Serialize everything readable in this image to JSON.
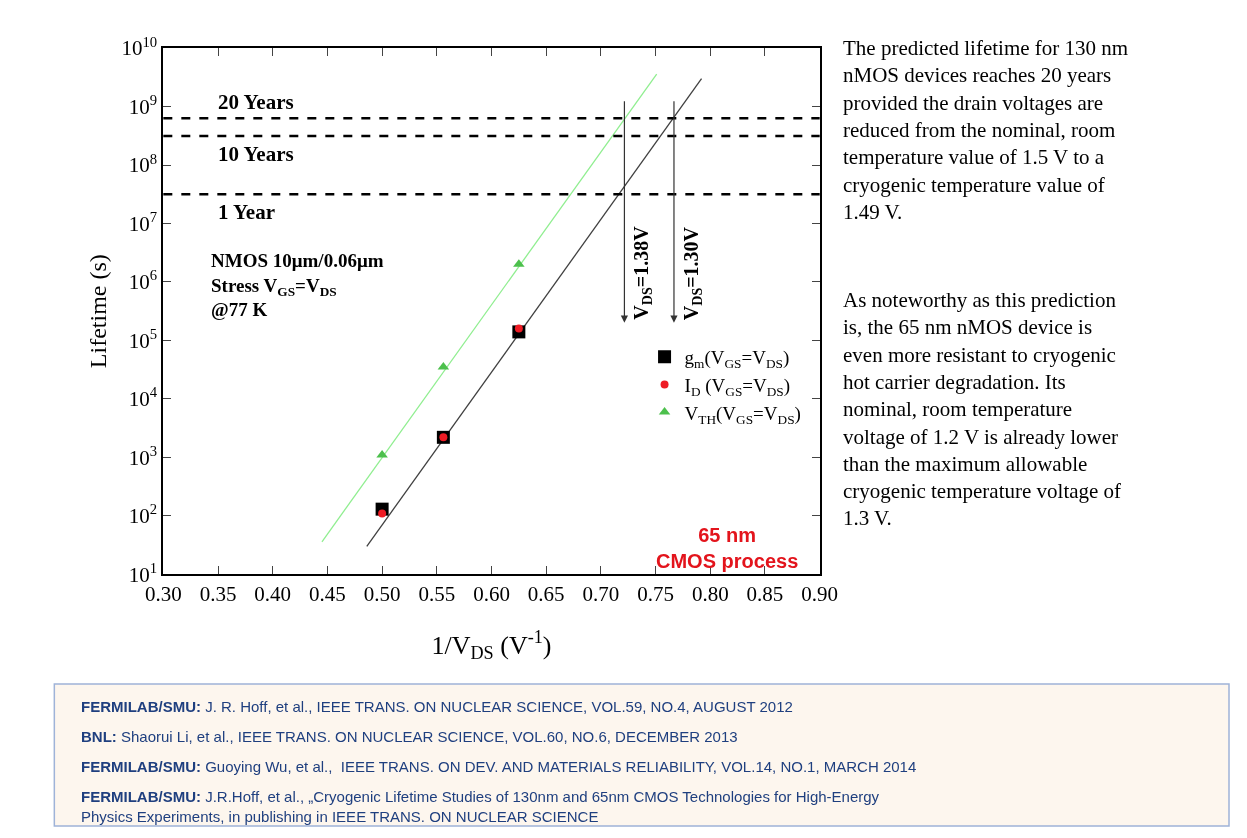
{
  "chart_data": {
    "type": "scatter",
    "xlabel": "1/V$_{DS}$ (V$^{-1}$)",
    "ylabel": "Lifetime (s)",
    "log": "y",
    "xlim": [
      0.3,
      0.9
    ],
    "xticks": [
      {
        "value": 0.3,
        "label": "0.30"
      },
      0.35,
      {
        "value": 0.4,
        "label": "0.40"
      },
      0.45,
      {
        "value": 0.5,
        "label": "0.50"
      },
      0.55,
      {
        "value": 0.6,
        "label": "0.60"
      },
      0.65,
      {
        "value": 0.7,
        "label": "0.70"
      },
      0.75,
      {
        "value": 0.8,
        "label": "0.80"
      },
      0.85,
      {
        "value": 0.9,
        "label": "0.90"
      }
    ],
    "ylim": [
      10,
      10000000000
    ],
    "yticks": [
      {
        "value": 10,
        "label": "10$^{1}$"
      },
      {
        "value": 100,
        "label": "10$^{2}$"
      },
      {
        "value": 1000,
        "label": "10$^{3}$"
      },
      {
        "value": 10000,
        "label": "10$^{4}$"
      },
      {
        "value": 100000,
        "label": "10$^{5}$"
      },
      {
        "value": 1000000,
        "label": "10$^{6}$"
      },
      {
        "value": 10000000,
        "label": "10$^{7}$"
      },
      {
        "value": 100000000,
        "label": "10$^{8}$"
      },
      {
        "value": 1000000000,
        "label": "10$^{9}$"
      },
      {
        "value": 10000000000,
        "label": "10$^{10}$"
      }
    ],
    "legend": "right",
    "series": [
      {
        "type": "line",
        "color": "#90ee90",
        "marker": "none",
        "x": [
          0.445,
          0.751
        ],
        "values": [
          36,
          3600000000
        ]
      },
      {
        "type": "line",
        "color": "#404040",
        "marker": "none",
        "x": [
          0.486,
          0.792
        ],
        "values": [
          30,
          3000000000
        ]
      },
      {
        "name": "g$_{m}$(V$_{GS}$=V$_{DS}$)",
        "color": "#000000",
        "marker": "square",
        "x": [
          0.5,
          0.556,
          0.625
        ],
        "values": [
          130,
          2200,
          140000
        ]
      },
      {
        "name": "I$_{D}$ (V$_{GS}$=V$_{DS}$)",
        "color": "#ee1c25",
        "marker": "circle",
        "x": [
          0.5,
          0.556,
          0.625
        ],
        "values": [
          110,
          2200,
          160000
        ]
      },
      {
        "name": "V$_{TH}$(V$_{GS}$=V$_{DS}$)",
        "color": "#4cc04c",
        "marker": "triangle",
        "x": [
          0.5,
          0.556,
          0.625
        ],
        "values": [
          1100,
          35000,
          2000000
        ]
      }
    ],
    "ref_lines": [
      {
        "axis": "y",
        "value": 630000000,
        "label": "20 Years",
        "line_style": "dashed",
        "color": "#000000"
      },
      {
        "axis": "y",
        "value": 315000000,
        "label": "10 Years",
        "line_style": "dashed",
        "color": "#000000"
      },
      {
        "axis": "y",
        "value": 31500000,
        "label": "1 Year",
        "line_style": "dashed",
        "color": "#000000"
      }
    ],
    "annotations": [
      "NMOS 10μm/0.06μm\nStress V$_{GS}$=V$_{DS}$\n@77 K",
      "65 nm\nCMOS process",
      "The predicted lifetime for 130 nm\nnMOS devices reaches 20 years\nprovided the drain voltages are\nreduced from the nominal, room\ntemperature value of 1.5 V to a\ncryogenic temperature value of\n1.49 V.",
      "As noteworthy as this prediction\nis, the 65 nm nMOS device is\neven more resistant to cryogenic\nhot carrier degradation. Its\nnominal, room temperature\nvoltage of 1.2 V is already lower\nthan the maximum allowable\ncryogenic temperature voltage of\n1.3 V.",
      "FERMILAB/SMU: J. R. Hoff, et al., IEEE TRANS. ON NUCLEAR SCIENCE, VOL.59, NO.4, AUGUST 2012",
      "BNL: Shaorui Li, et al., IEEE TRANS. ON NUCLEAR SCIENCE, VOL.60, NO.6, DECEMBER 2013",
      "FERMILAB/SMU: Guoying Wu, et al.,  IEEE TRANS. ON DEV. AND MATERIALS RELIABILITY, VOL.14, NO.1, MARCH 2014",
      "FERMILAB/SMU: J.R.Hoff, et al., „Cryogenic Lifetime Studies of 130nm and 65nm CMOS Technologies for High-Energy\nPhysics Experiments, in publishing in IEEE TRANS. ON NUCLEAR SCIENCE",
      "V$_{DS}$=1.38V",
      "V$_{DS}$=1.30V"
    ]
  }
}
